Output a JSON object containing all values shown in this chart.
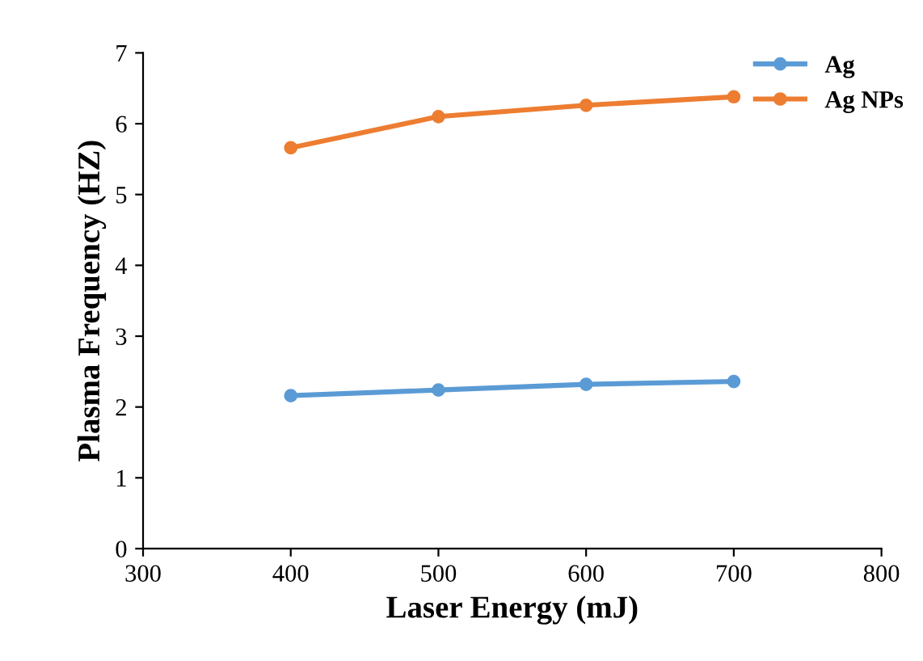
{
  "chart_data": {
    "type": "line",
    "xlabel": "Laser Energy (mJ)",
    "ylabel": "Plasma Frequency (HZ)",
    "x": [
      400,
      500,
      600,
      700
    ],
    "series": [
      {
        "name": "Ag",
        "color": "#5b9bd5",
        "values": [
          2.16,
          2.24,
          2.32,
          2.36
        ]
      },
      {
        "name": "Ag NPs",
        "color": "#ed7d31",
        "values": [
          5.66,
          6.1,
          6.26,
          6.38
        ]
      }
    ],
    "xlim": [
      300,
      800
    ],
    "xticks": [
      300,
      400,
      500,
      600,
      700,
      800
    ],
    "ylim": [
      0,
      7
    ],
    "yticks": [
      0,
      1,
      2,
      3,
      4,
      5,
      6,
      7
    ],
    "grid": false,
    "legend": "top right",
    "marker": "circle",
    "line_style": "solid"
  }
}
